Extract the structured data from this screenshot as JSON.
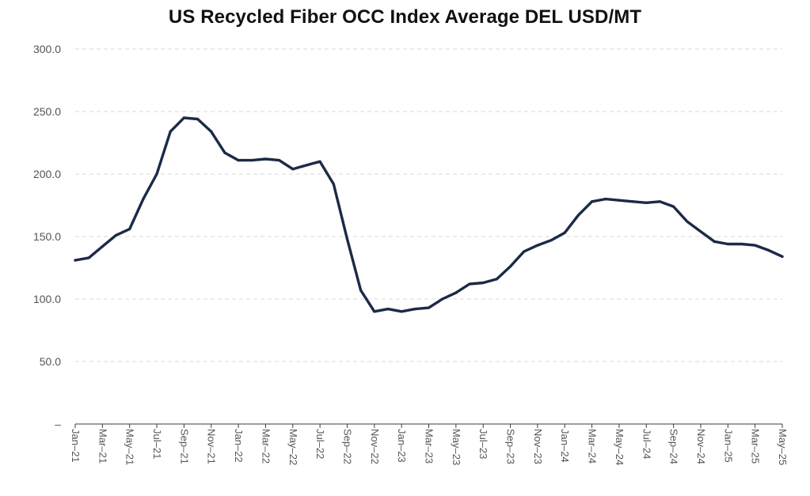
{
  "chart_data": {
    "type": "line",
    "title": "US Recycled Fiber OCC Index Average DEL USD/MT",
    "xlabel": "",
    "ylabel": "",
    "ylim": [
      0,
      300
    ],
    "y_ticks": [
      {
        "value": 0,
        "label": "–"
      },
      {
        "value": 50,
        "label": "50.0"
      },
      {
        "value": 100,
        "label": "100.0"
      },
      {
        "value": 150,
        "label": "150.0"
      },
      {
        "value": 200,
        "label": "200.0"
      },
      {
        "value": 250,
        "label": "250.0"
      },
      {
        "value": 300,
        "label": "300.0"
      }
    ],
    "grid": true,
    "legend": "none",
    "line_color": "#1c2a48",
    "x_tick_labels": [
      "Jan–21",
      "Mar–21",
      "May–21",
      "Jul–21",
      "Sep–21",
      "Nov–21",
      "Jan–22",
      "Mar–22",
      "May–22",
      "Jul–22",
      "Sep–22",
      "Nov–22",
      "Jan–23",
      "Mar–23",
      "May–23",
      "Jul–23",
      "Sep–23",
      "Nov–23",
      "Jan–24",
      "Mar–24",
      "May–24",
      "Jul–24",
      "Sep–24",
      "Nov–24",
      "Jan–25",
      "Mar–25",
      "May–25"
    ],
    "x": [
      "Jan–21",
      "Feb–21",
      "Mar–21",
      "Apr–21",
      "May–21",
      "Jun–21",
      "Jul–21",
      "Aug–21",
      "Sep–21",
      "Oct–21",
      "Nov–21",
      "Dec–21",
      "Jan–22",
      "Feb–22",
      "Mar–22",
      "Apr–22",
      "May–22",
      "Jun–22",
      "Jul–22",
      "Aug–22",
      "Sep–22",
      "Oct–22",
      "Nov–22",
      "Dec–22",
      "Jan–23",
      "Feb–23",
      "Mar–23",
      "Apr–23",
      "May–23",
      "Jun–23",
      "Jul–23",
      "Aug–23",
      "Sep–23",
      "Oct–23",
      "Nov–23",
      "Dec–23",
      "Jan–24",
      "Feb–24",
      "Mar–24",
      "Apr–24",
      "May–24",
      "Jun–24",
      "Jul–24",
      "Aug–24",
      "Sep–24",
      "Oct–24",
      "Nov–24",
      "Dec–24",
      "Jan–25",
      "Feb–25",
      "Mar–25",
      "Apr–25",
      "May–25"
    ],
    "series": [
      {
        "values": [
          131,
          133,
          142,
          151,
          156,
          180,
          200,
          234,
          245,
          244,
          234,
          217,
          211,
          211,
          212,
          211,
          204,
          207,
          210,
          192,
          148,
          107,
          90,
          92,
          90,
          92,
          93,
          100,
          105,
          112,
          113,
          116,
          126,
          138,
          143,
          147,
          153,
          167,
          178,
          180,
          179,
          178,
          177,
          178,
          174,
          162,
          154,
          146,
          144,
          144,
          143,
          139,
          134
        ]
      }
    ]
  }
}
